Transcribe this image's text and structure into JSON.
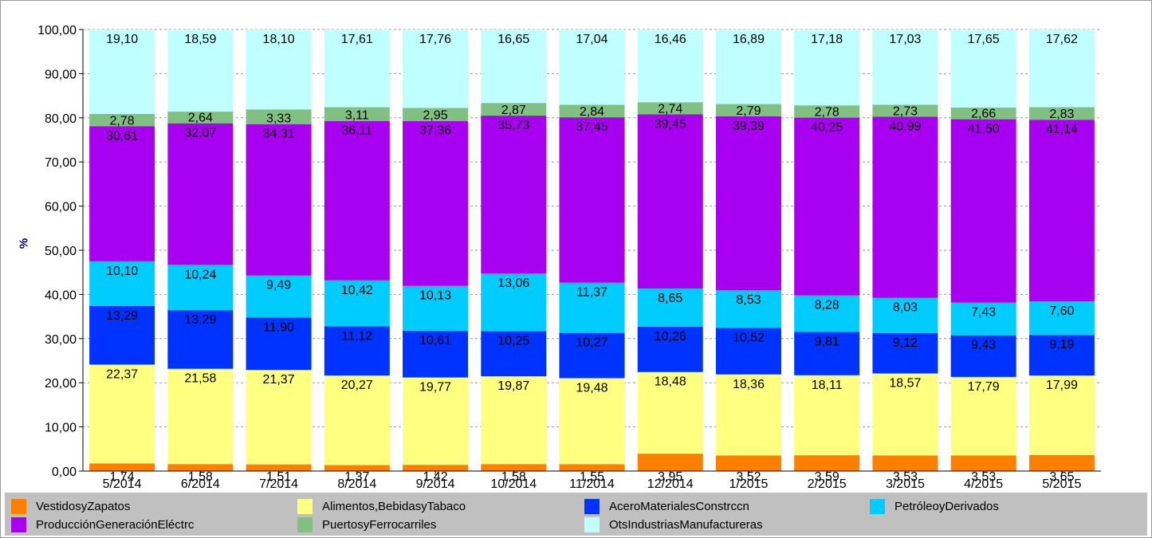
{
  "chart_data": {
    "type": "bar",
    "stacked": true,
    "ylabel": "%",
    "ylim": [
      0,
      100
    ],
    "yticks": [
      "0,00",
      "10,00",
      "20,00",
      "30,00",
      "40,00",
      "50,00",
      "60,00",
      "70,00",
      "80,00",
      "90,00",
      "100,00"
    ],
    "grid": true,
    "legend_position": "bottom",
    "categories": [
      "5/2014",
      "6/2014",
      "7/2014",
      "8/2014",
      "9/2014",
      "10/2014",
      "11/2014",
      "12/2014",
      "1/2015",
      "2/2015",
      "3/2015",
      "4/2015",
      "5/2015"
    ],
    "series": [
      {
        "name": "VestidosyZapatos",
        "color": "#ff8000",
        "values": [
          1.74,
          1.58,
          1.51,
          1.37,
          1.42,
          1.58,
          1.55,
          3.95,
          3.52,
          3.59,
          3.53,
          3.53,
          3.65
        ],
        "labels": [
          "1,74",
          "1,58",
          "1,51",
          "1,37",
          "1,42",
          "1,58",
          "1,55",
          "3,95",
          "3,52",
          "3,59",
          "3,53",
          "3,53",
          "3,65"
        ]
      },
      {
        "name": "Alimentos,BebidasyTabaco",
        "color": "#ffff80",
        "values": [
          22.37,
          21.58,
          21.37,
          20.27,
          19.77,
          19.87,
          19.48,
          18.48,
          18.36,
          18.11,
          18.57,
          17.79,
          17.99
        ],
        "labels": [
          "22,37",
          "21,58",
          "21,37",
          "20,27",
          "19,77",
          "19,87",
          "19,48",
          "18,48",
          "18,36",
          "18,11",
          "18,57",
          "17,79",
          "17,99"
        ]
      },
      {
        "name": "AceroMaterialesConstrccn",
        "color": "#0033ff",
        "values": [
          13.29,
          13.29,
          11.9,
          11.12,
          10.61,
          10.25,
          10.27,
          10.26,
          10.52,
          9.81,
          9.12,
          9.43,
          9.19
        ],
        "labels": [
          "13,29",
          "13,29",
          "11,90",
          "11,12",
          "10,61",
          "10,25",
          "10,27",
          "10,26",
          "10,52",
          "9,81",
          "9,12",
          "9,43",
          "9,19"
        ]
      },
      {
        "name": "PetróleoyDerivados",
        "color": "#00ccff",
        "values": [
          10.1,
          10.24,
          9.49,
          10.42,
          10.13,
          13.06,
          11.37,
          8.65,
          8.53,
          8.28,
          8.03,
          7.43,
          7.6
        ],
        "labels": [
          "10,10",
          "10,24",
          "9,49",
          "10,42",
          "10,13",
          "13,06",
          "11,37",
          "8,65",
          "8,53",
          "8,28",
          "8,03",
          "7,43",
          "7,60"
        ]
      },
      {
        "name": "ProducciónGeneraciónEléctrc",
        "color": "#a800f0",
        "values": [
          30.61,
          32.07,
          34.31,
          36.11,
          37.36,
          35.73,
          37.45,
          39.45,
          39.39,
          40.25,
          40.99,
          41.5,
          41.14
        ],
        "labels": [
          "30,61",
          "32,07",
          "34,31",
          "36,11",
          "37,36",
          "35,73",
          "37,45",
          "39,45",
          "39,39",
          "40,25",
          "40,99",
          "41,50",
          "41,14"
        ]
      },
      {
        "name": "PuertosyFerrocarriles",
        "color": "#80c080",
        "values": [
          2.78,
          2.64,
          3.33,
          3.11,
          2.95,
          2.87,
          2.84,
          2.74,
          2.79,
          2.78,
          2.73,
          2.66,
          2.83
        ],
        "labels": [
          "2,78",
          "2,64",
          "3,33",
          "3,11",
          "2,95",
          "2,87",
          "2,84",
          "2,74",
          "2,79",
          "2,78",
          "2,73",
          "2,66",
          "2,83"
        ]
      },
      {
        "name": "OtsIndustriasManufactureras",
        "color": "#c0ffff",
        "values": [
          19.1,
          18.59,
          18.1,
          17.61,
          17.76,
          16.65,
          17.04,
          16.46,
          16.89,
          17.18,
          17.03,
          17.65,
          17.62
        ],
        "labels": [
          "19,10",
          "18,59",
          "18,10",
          "17,61",
          "17,76",
          "16,65",
          "17,04",
          "16,46",
          "16,89",
          "17,18",
          "17,03",
          "17,65",
          "17,62"
        ]
      }
    ]
  }
}
